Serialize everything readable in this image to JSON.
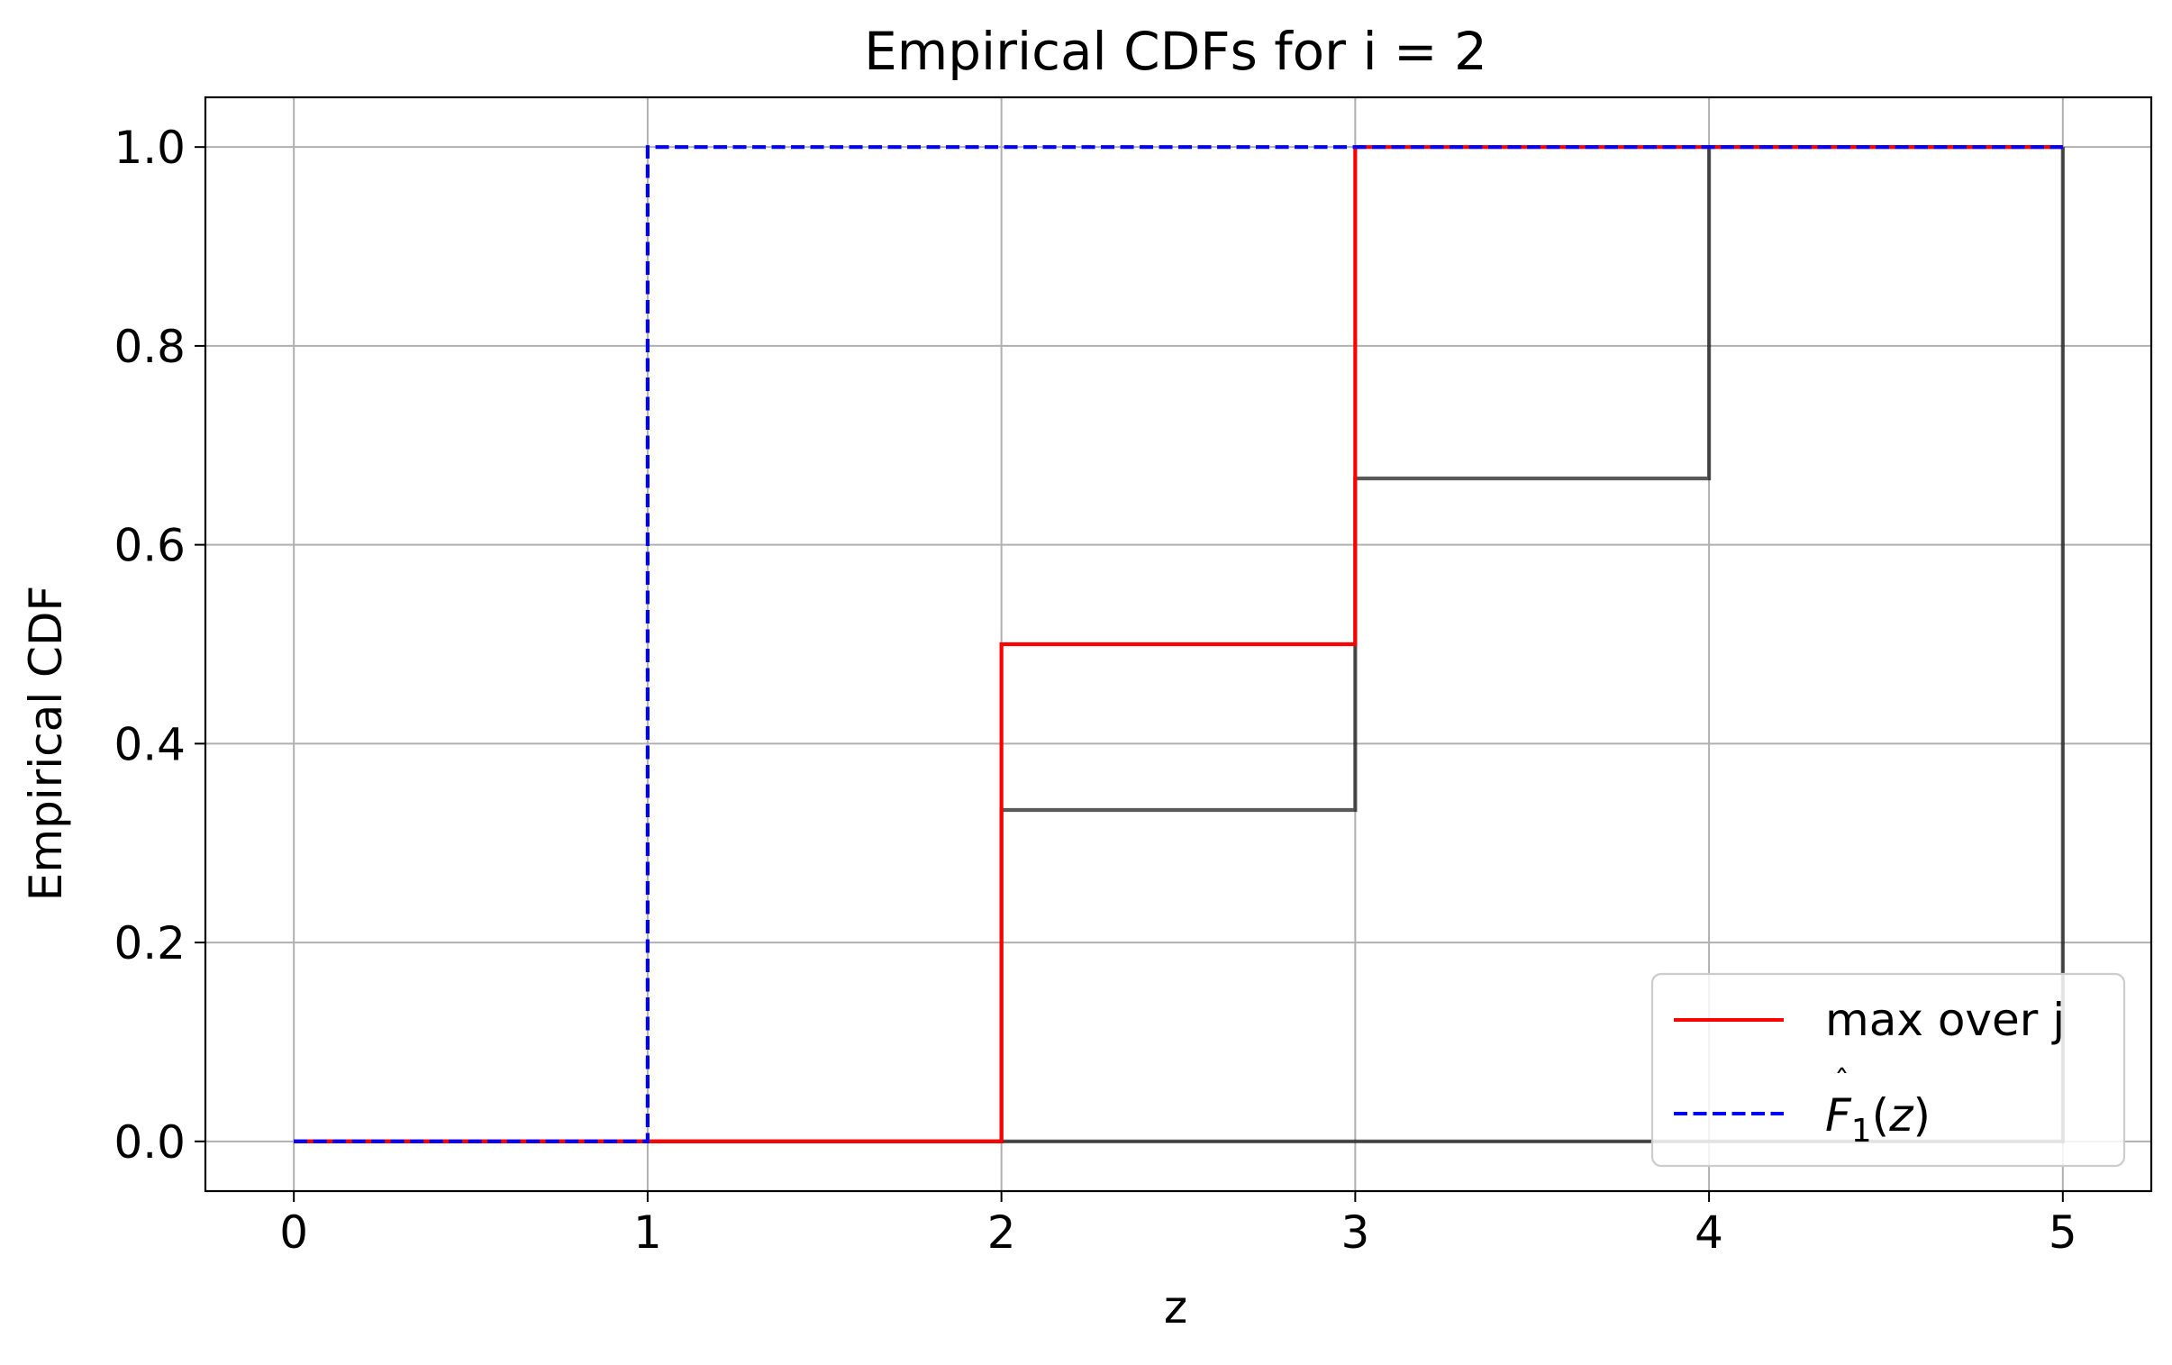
{
  "chart_data": {
    "type": "line",
    "title": "Empirical CDFs for i = 2",
    "xlabel": "z",
    "ylabel": "Empirical CDF",
    "xlim": [
      -0.25,
      5.25
    ],
    "ylim": [
      -0.05,
      1.05
    ],
    "x_ticks": [
      0,
      1,
      2,
      3,
      4,
      5
    ],
    "x_tick_labels": [
      "0",
      "1",
      "2",
      "3",
      "4",
      "5"
    ],
    "y_ticks": [
      0.0,
      0.2,
      0.4,
      0.6,
      0.8,
      1.0
    ],
    "y_tick_labels": [
      "0.0",
      "0.2",
      "0.4",
      "0.6",
      "0.8",
      "1.0"
    ],
    "grid": true,
    "legend_position": "bottom-right",
    "series": [
      {
        "color": "#000000",
        "opacity": 0.65,
        "style": "solid",
        "step": "post",
        "x": [
          0,
          1,
          2,
          3,
          4,
          5
        ],
        "y": [
          0,
          0,
          0,
          0,
          0,
          1
        ]
      },
      {
        "color": "#000000",
        "opacity": 0.65,
        "style": "solid",
        "step": "post",
        "x": [
          0,
          1,
          2,
          3,
          4,
          5
        ],
        "y": [
          0,
          0,
          0.3333,
          0.6667,
          1,
          1
        ]
      },
      {
        "name": "max over j",
        "color": "#ff0000",
        "style": "solid",
        "step": "post",
        "x": [
          0,
          1,
          2,
          3,
          4,
          5
        ],
        "y": [
          0,
          0,
          0.5,
          1,
          1,
          1
        ]
      },
      {
        "name": "F̂₁(z)",
        "color": "#0000ff",
        "style": "dashed",
        "step": "post",
        "x": [
          0,
          1,
          2,
          3,
          4,
          5
        ],
        "y": [
          0,
          1,
          1,
          1,
          1,
          1
        ]
      }
    ],
    "legend": [
      {
        "label": "max over j",
        "color": "#ff0000",
        "style": "solid"
      },
      {
        "label": "F̂₁(z)",
        "color": "#0000ff",
        "style": "dashed"
      }
    ]
  }
}
